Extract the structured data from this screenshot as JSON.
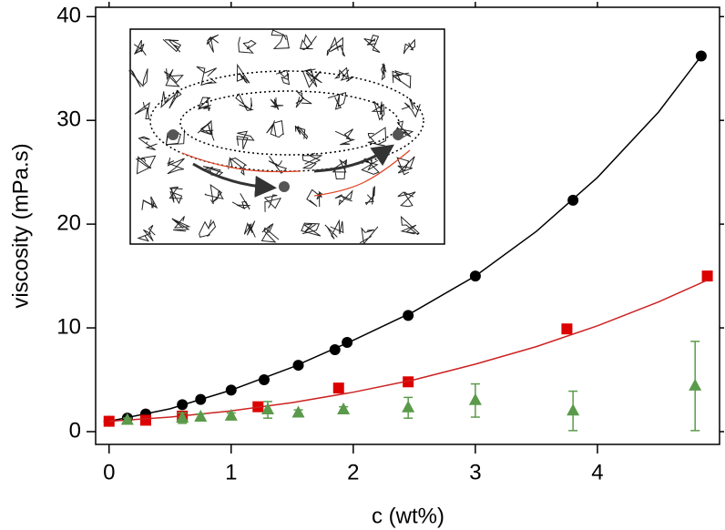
{
  "chart_data": {
    "type": "scatter",
    "xlabel": "c (wt%)",
    "ylabel": "viscosity (mPa.s)",
    "xlim": [
      -0.11,
      5.0
    ],
    "ylim": [
      -1.23,
      40.9
    ],
    "xticks": [
      0,
      1,
      2,
      3,
      4
    ],
    "yticks": [
      0,
      10,
      20,
      30,
      40
    ],
    "series": [
      {
        "color": "#000000",
        "marker": "circle",
        "x": [
          0,
          0.15,
          0.3,
          0.6,
          0.75,
          1,
          1.27,
          1.55,
          1.85,
          1.95,
          2.45,
          3,
          3.8,
          4.85
        ],
        "values": [
          1.0,
          1.3,
          1.7,
          2.6,
          3.1,
          4.0,
          5.0,
          6.4,
          7.9,
          8.6,
          11.2,
          15.0,
          22.3,
          36.2
        ]
      },
      {
        "color": "#000000",
        "marker": "none",
        "x": [
          0,
          0.5,
          1,
          1.5,
          2,
          2.5,
          3,
          3.5,
          4,
          4.5,
          4.85
        ],
        "values": [
          1.0,
          2.2,
          4.0,
          6.2,
          8.8,
          11.6,
          15.0,
          19.3,
          24.5,
          30.8,
          36.2
        ]
      },
      {
        "color": "#dd0000",
        "marker": "square",
        "x": [
          0,
          0.3,
          0.6,
          1.22,
          1.88,
          2.45,
          3.75,
          4.9
        ],
        "values": [
          1.0,
          1.1,
          1.5,
          2.4,
          4.2,
          4.8,
          9.9,
          15.0
        ]
      },
      {
        "color": "#cc2222",
        "marker": "none",
        "x": [
          0,
          0.5,
          1,
          1.5,
          2,
          2.5,
          3,
          3.5,
          4,
          4.5,
          4.9
        ],
        "values": [
          1.0,
          1.4,
          2.0,
          2.8,
          3.8,
          5.0,
          6.5,
          8.2,
          10.2,
          12.5,
          14.6
        ]
      },
      {
        "color": "#5a9a4a",
        "marker": "triangle",
        "x": [
          0.15,
          0.6,
          0.75,
          1,
          1.3,
          1.55,
          1.92,
          2.45,
          3,
          3.8,
          4.8
        ],
        "values": [
          1.1,
          1.3,
          1.4,
          1.5,
          2.1,
          1.8,
          2.1,
          2.3,
          3.0,
          2.0,
          4.4
        ],
        "errors": [
          0.2,
          0.5,
          0.3,
          0.3,
          0.8,
          0.3,
          0.3,
          1.0,
          1.6,
          1.9,
          4.3
        ]
      }
    ]
  }
}
